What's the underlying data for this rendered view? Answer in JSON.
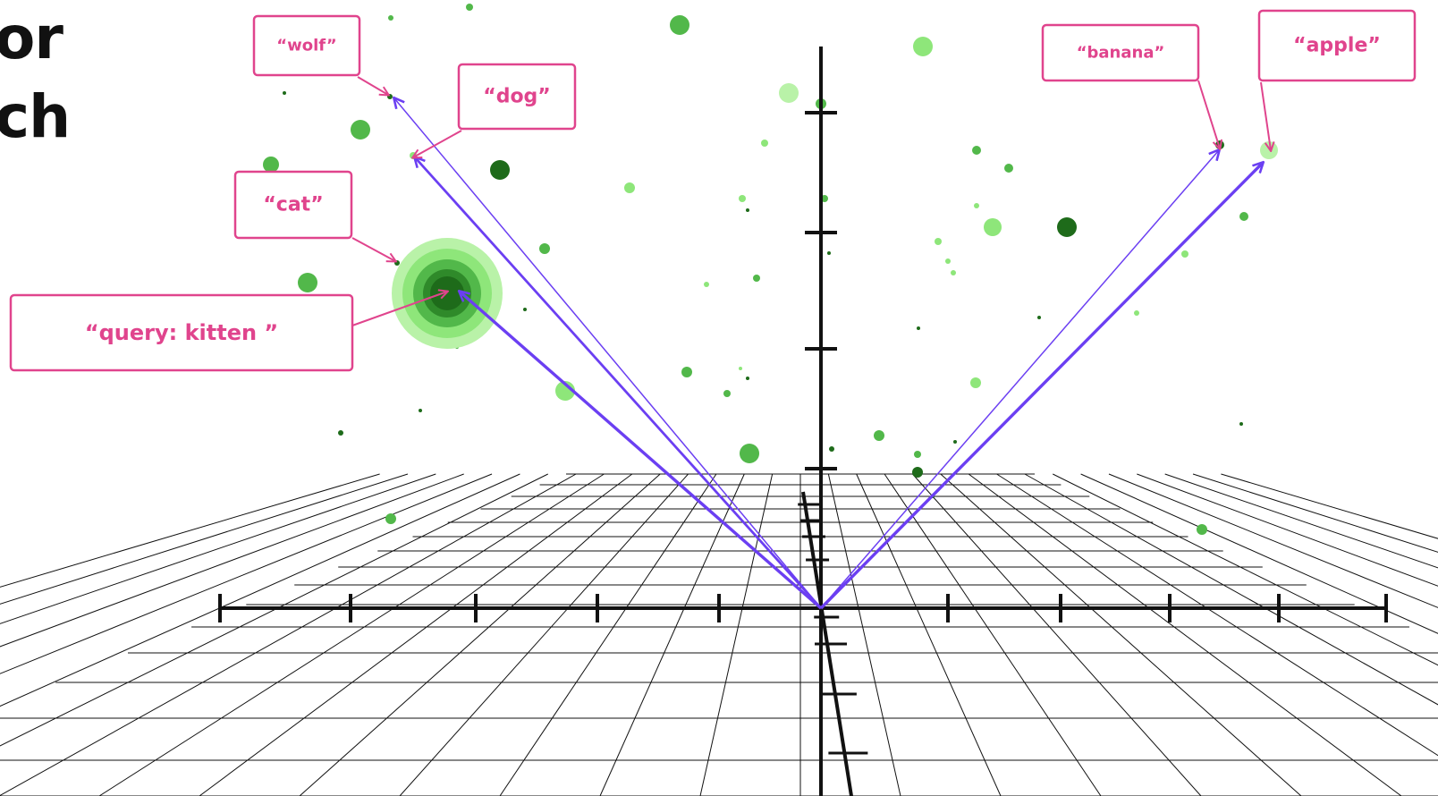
{
  "title_fragments": [
    "or",
    "ch"
  ],
  "labels": {
    "wolf": "“wolf”",
    "dog": "“dog”",
    "cat": "“cat”",
    "query": "“query: kitten ”",
    "banana": "“banana”",
    "apple": "“apple”"
  },
  "colors": {
    "label_border": "#e0448d",
    "label_text": "#e0448d",
    "vector": "#6b3ff2",
    "axis": "#111111",
    "grid": "#111111",
    "point_light": "#8ee67a",
    "point_mid": "#52b84a",
    "point_dark": "#1e6b1a"
  },
  "icons": {
    "query_highlight": "concentric-glow-icon",
    "vector_arrow": "arrow-head-icon"
  }
}
